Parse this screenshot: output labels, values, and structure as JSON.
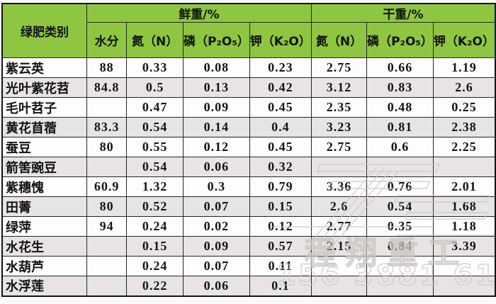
{
  "table": {
    "row_header": "绿肥类别",
    "groups": [
      {
        "label": "鲜重/%"
      },
      {
        "label": "干重/%"
      }
    ],
    "columns": [
      "水分",
      "氮（N）",
      "磷（P₂O₅）",
      "钾（K₂O）",
      "氮（N）",
      "磷（P₂O₅）",
      "钾（K₂O）"
    ],
    "rows": [
      {
        "name": "紫云英",
        "values": [
          "88",
          "0.33",
          "0.08",
          "0.23",
          "2.75",
          "0.66",
          "1.19"
        ]
      },
      {
        "name": "光叶紫花苕",
        "values": [
          "84.8",
          "0.5",
          "0.13",
          "0.42",
          "3.12",
          "0.83",
          "2.6"
        ]
      },
      {
        "name": "毛叶苕子",
        "values": [
          "",
          "0.47",
          "0.09",
          "0.45",
          "2.35",
          "0.48",
          "0.25"
        ]
      },
      {
        "name": "黄花苜蓿",
        "values": [
          "83.3",
          "0.54",
          "0.14",
          "0.4",
          "3.23",
          "0.81",
          "2.38"
        ]
      },
      {
        "name": "蚕豆",
        "values": [
          "80",
          "0.55",
          "0.12",
          "0.45",
          "2.75",
          "0.6",
          "2.25"
        ]
      },
      {
        "name": "箭筈豌豆",
        "values": [
          "",
          "0.54",
          "0.06",
          "0.32",
          "",
          "",
          ""
        ]
      },
      {
        "name": "紫穗愧",
        "values": [
          "60.9",
          "1.32",
          "0.3",
          "0.79",
          "3.36",
          "0.76",
          "2.01"
        ]
      },
      {
        "name": "田菁",
        "values": [
          "80",
          "0.52",
          "0.07",
          "0.15",
          "2.6",
          "0.54",
          "1.68"
        ]
      },
      {
        "name": "绿萍",
        "values": [
          "94",
          "0.24",
          "0.02",
          "0.12",
          "2.77",
          "0.35",
          "1.18"
        ]
      },
      {
        "name": "水花生",
        "values": [
          "",
          "0.15",
          "0.09",
          "0.57",
          "2.15",
          "0.84",
          "3.39"
        ]
      },
      {
        "name": "水葫芦",
        "values": [
          "",
          "0.24",
          "0.07",
          "0.11",
          "",
          "",
          ""
        ]
      },
      {
        "name": "水浮莲",
        "values": [
          "",
          "0.22",
          "0.06",
          "0.1",
          "",
          "",
          ""
        ]
      }
    ]
  },
  "watermark": {
    "brand_text": "程翔重工",
    "phone": "156 3881 6181"
  },
  "colors": {
    "header_green": "#8ec641",
    "stripe_grey": "#e8e4e3",
    "border_black": "#141414",
    "watermark_grey": "#c9c5c3"
  },
  "chart_data": {
    "type": "table",
    "title": "",
    "corner_header": "绿肥类别",
    "column_groups": [
      {
        "label": "鲜重/%",
        "span": 4
      },
      {
        "label": "干重/%",
        "span": 3
      }
    ],
    "columns": [
      "水分",
      "氮（N）",
      "磷（P₂O₅）",
      "钾（K₂O）",
      "氮（N）",
      "磷（P₂O₅）",
      "钾（K₂O）"
    ],
    "rows": [
      [
        "紫云英",
        88,
        0.33,
        0.08,
        0.23,
        2.75,
        0.66,
        1.19
      ],
      [
        "光叶紫花苕",
        84.8,
        0.5,
        0.13,
        0.42,
        3.12,
        0.83,
        2.6
      ],
      [
        "毛叶苕子",
        null,
        0.47,
        0.09,
        0.45,
        2.35,
        0.48,
        0.25
      ],
      [
        "黄花苜蓿",
        83.3,
        0.54,
        0.14,
        0.4,
        3.23,
        0.81,
        2.38
      ],
      [
        "蚕豆",
        80,
        0.55,
        0.12,
        0.45,
        2.75,
        0.6,
        2.25
      ],
      [
        "箭筈豌豆",
        null,
        0.54,
        0.06,
        0.32,
        null,
        null,
        null
      ],
      [
        "紫穗愧",
        60.9,
        1.32,
        0.3,
        0.79,
        3.36,
        0.76,
        2.01
      ],
      [
        "田菁",
        80,
        0.52,
        0.07,
        0.15,
        2.6,
        0.54,
        1.68
      ],
      [
        "绿萍",
        94,
        0.24,
        0.02,
        0.12,
        2.77,
        0.35,
        1.18
      ],
      [
        "水花生",
        null,
        0.15,
        0.09,
        0.57,
        2.15,
        0.84,
        3.39
      ],
      [
        "水葫芦",
        null,
        0.24,
        0.07,
        0.11,
        null,
        null,
        null
      ],
      [
        "水浮莲",
        null,
        0.22,
        0.06,
        0.1,
        null,
        null,
        null
      ]
    ]
  }
}
